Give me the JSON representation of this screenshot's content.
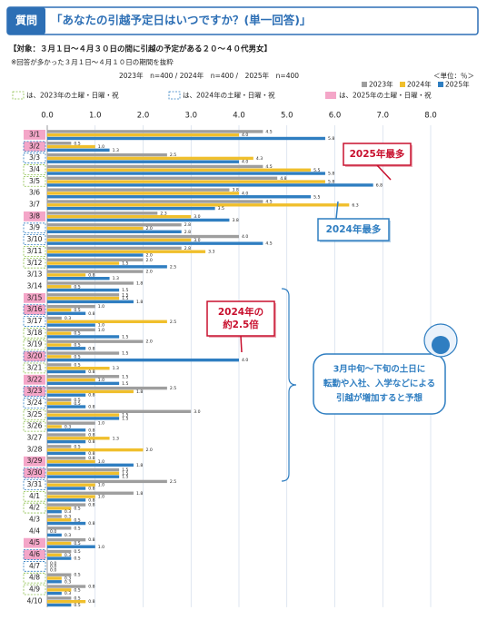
{
  "header": {
    "label": "質問",
    "title": "「あなたの引越予定日はいつですか？(単一回答)」"
  },
  "target": "【対象：３月１日～４月３０日の間に引越の予定がある２０～４０代男女】",
  "note": "※回答が多かった３月１日～４月１０日の期間を抜粋",
  "sample": "2023年　n=400 / 2024年　n=400 /　2025年　n=400",
  "unit": "＜単位：％＞",
  "holiday_legend": [
    "は、2023年の土曜・日曜・祝",
    "は、2024年の土曜・日曜・祝",
    "は、2025年の土曜・日曜・祝"
  ],
  "chart_data": {
    "type": "hbar",
    "categories": [
      "3/1",
      "3/2",
      "3/3",
      "3/4",
      "3/5",
      "3/6",
      "3/7",
      "3/8",
      "3/9",
      "3/10",
      "3/11",
      "3/12",
      "3/13",
      "3/14",
      "3/15",
      "3/16",
      "3/17",
      "3/18",
      "3/19",
      "3/20",
      "3/21",
      "3/22",
      "3/23",
      "3/24",
      "3/25",
      "3/26",
      "3/27",
      "3/28",
      "3/29",
      "3/30",
      "3/31",
      "4/1",
      "4/2",
      "4/3",
      "4/4",
      "4/5",
      "4/6",
      "4/7",
      "4/8",
      "4/9",
      "4/10"
    ],
    "xlim": [
      0,
      8.4
    ],
    "xticks": [
      {
        "value": 0,
        "label": "0.0"
      },
      {
        "value": 1,
        "label": "1.0"
      },
      {
        "value": 2,
        "label": "2.0"
      },
      {
        "value": 3,
        "label": "3.0"
      },
      {
        "value": 4,
        "label": "4.0"
      },
      {
        "value": 5,
        "label": "5.0"
      },
      {
        "value": 6,
        "label": "6.0"
      },
      {
        "value": 7,
        "label": "7.0"
      },
      {
        "value": 8,
        "label": "8.0"
      }
    ],
    "grid": true,
    "series": [
      {
        "name": "2023年",
        "color": "#9e9e9e",
        "holiday_style": "green-dashed",
        "holiday_categories": [
          "3/4",
          "3/5",
          "3/11",
          "3/12",
          "3/18",
          "3/19",
          "3/21",
          "3/25",
          "3/26",
          "4/1",
          "4/2",
          "4/8",
          "4/9"
        ],
        "values": [
          4.5,
          0.5,
          2.5,
          4.5,
          4.8,
          3.8,
          4.5,
          2.3,
          2.8,
          4.0,
          2.8,
          2.0,
          2.0,
          1.8,
          1.5,
          1.0,
          0.3,
          1.0,
          2.0,
          1.5,
          0.5,
          1.5,
          2.5,
          0.5,
          3.0,
          1.0,
          0.8,
          0.5,
          0.8,
          1.5,
          2.5,
          1.8,
          0.8,
          0.3,
          0.5,
          0.8,
          0.5,
          0.0,
          0.5,
          0.8,
          0.5
        ],
        "value_labels": [
          "4.5",
          "0.5",
          "2.5",
          "4.5",
          "4.8",
          "3.8",
          "4.5",
          "2.3",
          "2.8",
          "4.0",
          "2.8",
          "2.0",
          "2.0",
          "1.8",
          "1.5",
          "1.0",
          "0.3",
          "1.0",
          "2.0",
          "1.5",
          "0.5",
          "1.5",
          "2.5",
          "0.5",
          "3.0",
          "1.0",
          "0.8",
          "0.5",
          "0.8",
          "1.5",
          "2.5",
          "1.8",
          "0.8",
          "0.3",
          "0.5",
          "0.8",
          "0.5",
          "0.0",
          "0.5",
          "0.8",
          "0.5"
        ]
      },
      {
        "name": "2024年",
        "color": "#f0bf2c",
        "holiday_style": "blue-dashed",
        "holiday_categories": [
          "3/2",
          "3/3",
          "3/9",
          "3/10",
          "3/16",
          "3/17",
          "3/20",
          "3/23",
          "3/24",
          "3/30",
          "3/31",
          "4/6",
          "4/7"
        ],
        "values": [
          4.0,
          1.0,
          4.3,
          5.5,
          5.8,
          4.0,
          6.3,
          3.0,
          2.0,
          3.0,
          3.3,
          1.5,
          0.8,
          0.5,
          1.5,
          0.5,
          2.5,
          0.5,
          0.5,
          0.5,
          1.3,
          1.0,
          1.8,
          0.5,
          1.5,
          0.3,
          1.3,
          2.0,
          1.0,
          1.5,
          1.0,
          1.0,
          0.5,
          0.5,
          0.0,
          0.5,
          0.3,
          0.0,
          0.3,
          0.5,
          0.8
        ],
        "value_labels": [
          "4.0",
          "1.0",
          "4.3",
          "5.5",
          "5.8",
          "4.0",
          "6.3",
          "3.0",
          "2.0",
          "3.0",
          "3.3",
          "1.5",
          "0.8",
          "0.5",
          "1.5",
          "0.5",
          "2.5",
          "0.5",
          "0.5",
          "0.5",
          "1.3",
          "1.0",
          "1.8",
          "0.5",
          "1.5",
          "0.3",
          "1.3",
          "2.0",
          "1.0",
          "1.5",
          "1.0",
          "1.0",
          "0.5",
          "0.5",
          "0.0",
          "0.5",
          "0.3",
          "0.0",
          "0.3",
          "0.5",
          "0.8"
        ]
      },
      {
        "name": "2025年",
        "color": "#2f7ec1",
        "holiday_style": "pink-fill",
        "holiday_categories": [
          "3/1",
          "3/2",
          "3/8",
          "3/15",
          "3/16",
          "3/20",
          "3/22",
          "3/23",
          "3/29",
          "3/30",
          "4/5",
          "4/6"
        ],
        "values": [
          5.8,
          1.3,
          4.0,
          5.8,
          6.8,
          5.5,
          3.5,
          3.8,
          2.8,
          4.5,
          2.0,
          2.5,
          1.3,
          1.5,
          1.8,
          0.8,
          1.0,
          1.5,
          0.8,
          4.0,
          0.8,
          1.5,
          0.8,
          0.8,
          1.5,
          0.8,
          0.8,
          0.8,
          1.8,
          1.5,
          0.8,
          0.8,
          0.3,
          0.8,
          0.3,
          1.0,
          0.5,
          0.0,
          0.3,
          0.3,
          0.5
        ],
        "value_labels": [
          "5.8",
          "1.3",
          "4.0",
          "5.8",
          "6.8",
          "5.5",
          "3.5",
          "3.8",
          "2.8",
          "4.5",
          "2.0",
          "2.5",
          "1.3",
          "1.5",
          "1.8",
          "0.8",
          "1.0",
          "1.5",
          "0.8",
          "4.0",
          "0.8",
          "1.5",
          "0.8",
          "0.8",
          "1.5",
          "0.8",
          "0.8",
          "0.8",
          "1.8",
          "1.5",
          "0.8",
          "0.8",
          "0.3",
          "0.8",
          "0.3",
          "1.0",
          "0.5",
          "0.0",
          "0.3",
          "0.3",
          "0.5"
        ]
      }
    ],
    "annotations": [
      {
        "lines": [
          "2025年最多"
        ],
        "style": "red"
      },
      {
        "lines": [
          "2024年最多"
        ],
        "style": "blue"
      },
      {
        "lines": [
          "2024年の",
          "約2.5倍"
        ],
        "style": "red"
      },
      {
        "lines": [
          "3月中旬〜下旬の土日に",
          "転勤や入社、入学などによる",
          "引越が増加すると予想"
        ],
        "style": "callout"
      }
    ]
  }
}
